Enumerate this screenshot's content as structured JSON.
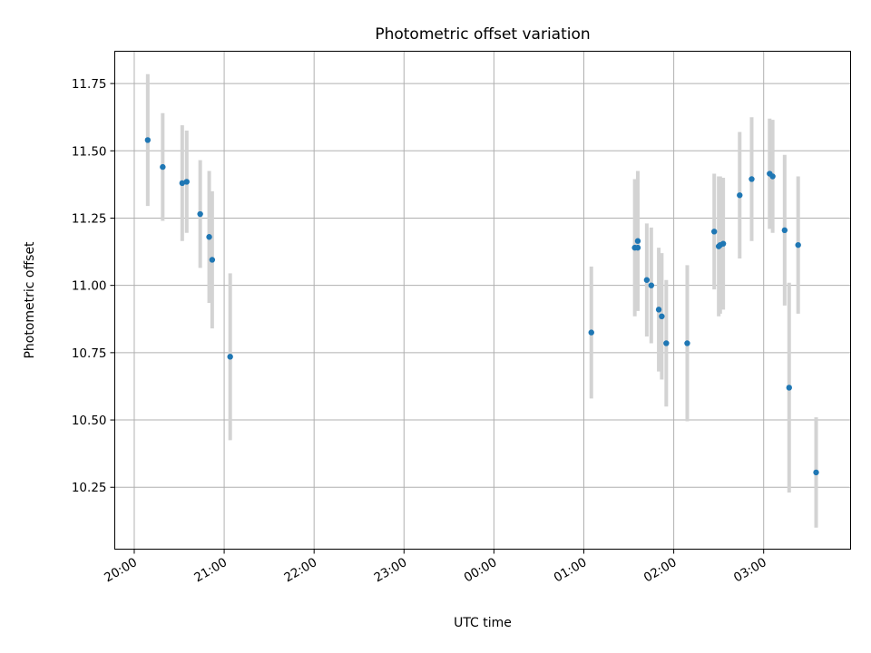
{
  "chart_data": {
    "type": "scatter",
    "title": "Photometric offset variation",
    "xlabel": "UTC time",
    "ylabel": "Photometric offset",
    "x_axis": {
      "kind": "time",
      "tick_labels": [
        "20:00",
        "21:00",
        "22:00",
        "23:00",
        "00:00",
        "01:00",
        "02:00",
        "03:00"
      ],
      "range": [
        "19:47",
        "03:58"
      ]
    },
    "y_axis": {
      "ylim": [
        10.02,
        11.87
      ],
      "ticks": [
        10.25,
        10.5,
        10.75,
        11.0,
        11.25,
        11.5,
        11.75
      ],
      "tick_labels": [
        "10.25",
        "10.50",
        "10.75",
        "11.00",
        "11.25",
        "11.50",
        "11.75"
      ]
    },
    "grid": true,
    "colors": {
      "point": "#1f77b4",
      "errorbar": "#d3d3d3",
      "grid": "#b0b0b0"
    },
    "points": [
      {
        "t": "20:09",
        "y": 11.54,
        "err": 0.245
      },
      {
        "t": "20:19",
        "y": 11.44,
        "err": 0.2
      },
      {
        "t": "20:32",
        "y": 11.38,
        "err": 0.215
      },
      {
        "t": "20:35",
        "y": 11.385,
        "err": 0.19
      },
      {
        "t": "20:44",
        "y": 11.265,
        "err": 0.2
      },
      {
        "t": "20:50",
        "y": 11.18,
        "err": 0.245
      },
      {
        "t": "20:52",
        "y": 11.095,
        "err": 0.255
      },
      {
        "t": "21:04",
        "y": 10.735,
        "err": 0.31
      },
      {
        "t": "01:05",
        "y": 10.825,
        "err": 0.245
      },
      {
        "t": "01:34",
        "y": 11.14,
        "err": 0.255
      },
      {
        "t": "01:36",
        "y": 11.165,
        "err": 0.26
      },
      {
        "t": "01:36",
        "y": 11.14,
        "err": 0.2
      },
      {
        "t": "01:42",
        "y": 11.02,
        "err": 0.21
      },
      {
        "t": "01:45",
        "y": 11.0,
        "err": 0.215
      },
      {
        "t": "01:50",
        "y": 10.91,
        "err": 0.23
      },
      {
        "t": "01:52",
        "y": 10.885,
        "err": 0.235
      },
      {
        "t": "01:55",
        "y": 10.785,
        "err": 0.235
      },
      {
        "t": "02:09",
        "y": 10.785,
        "err": 0.29
      },
      {
        "t": "02:27",
        "y": 11.2,
        "err": 0.215
      },
      {
        "t": "02:30",
        "y": 11.145,
        "err": 0.26
      },
      {
        "t": "02:31",
        "y": 11.15,
        "err": 0.255
      },
      {
        "t": "02:33",
        "y": 11.155,
        "err": 0.245
      },
      {
        "t": "02:44",
        "y": 11.335,
        "err": 0.235
      },
      {
        "t": "02:52",
        "y": 11.395,
        "err": 0.23
      },
      {
        "t": "03:04",
        "y": 11.415,
        "err": 0.205
      },
      {
        "t": "03:06",
        "y": 11.405,
        "err": 0.21
      },
      {
        "t": "03:14",
        "y": 11.205,
        "err": 0.28
      },
      {
        "t": "03:17",
        "y": 10.62,
        "err": 0.39
      },
      {
        "t": "03:23",
        "y": 11.15,
        "err": 0.255
      },
      {
        "t": "03:35",
        "y": 10.305,
        "err": 0.205
      }
    ]
  }
}
